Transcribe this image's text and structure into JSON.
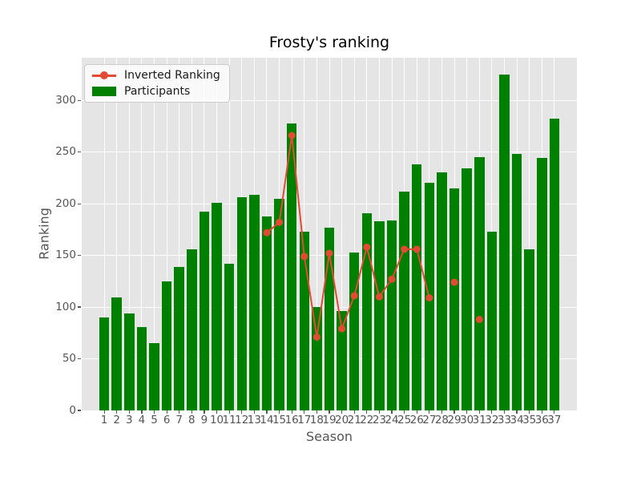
{
  "chart_data": {
    "type": "bar",
    "title": "Frosty's ranking",
    "xlabel": "Season",
    "ylabel": "Ranking",
    "categories": [
      1,
      2,
      3,
      4,
      5,
      6,
      7,
      8,
      9,
      10,
      11,
      12,
      13,
      14,
      15,
      16,
      17,
      18,
      19,
      20,
      21,
      22,
      23,
      24,
      25,
      26,
      27,
      28,
      29,
      30,
      31,
      32,
      33,
      34,
      35,
      36,
      37
    ],
    "series": [
      {
        "name": "Inverted Ranking",
        "type": "line",
        "marker": "circle",
        "color": "#E24A33",
        "values": [
          null,
          null,
          null,
          null,
          null,
          null,
          null,
          null,
          null,
          null,
          null,
          null,
          null,
          172,
          182,
          266,
          149,
          71,
          152,
          79,
          111,
          158,
          110,
          127,
          156,
          156,
          109,
          null,
          124,
          null,
          88,
          null,
          null,
          null,
          null,
          null,
          null
        ]
      },
      {
        "name": "Participants",
        "type": "bar",
        "color": "#008000",
        "values": [
          90,
          109,
          94,
          81,
          65,
          125,
          139,
          156,
          192,
          201,
          142,
          206,
          209,
          188,
          205,
          278,
          173,
          100,
          177,
          96,
          153,
          191,
          183,
          184,
          212,
          238,
          220,
          230,
          215,
          234,
          245,
          173,
          325,
          248,
          156,
          244,
          282
        ]
      }
    ],
    "yticks": [
      0,
      50,
      100,
      150,
      200,
      250,
      300
    ],
    "ylim": [
      0,
      341.25
    ],
    "grid": true,
    "legend_position": "upper-left",
    "colors": {
      "figure_background": "#ffffff",
      "plot_background": "#e5e5e5",
      "gridline": "#ffffff",
      "tick_text": "#555555",
      "title_text": "#000000"
    }
  }
}
